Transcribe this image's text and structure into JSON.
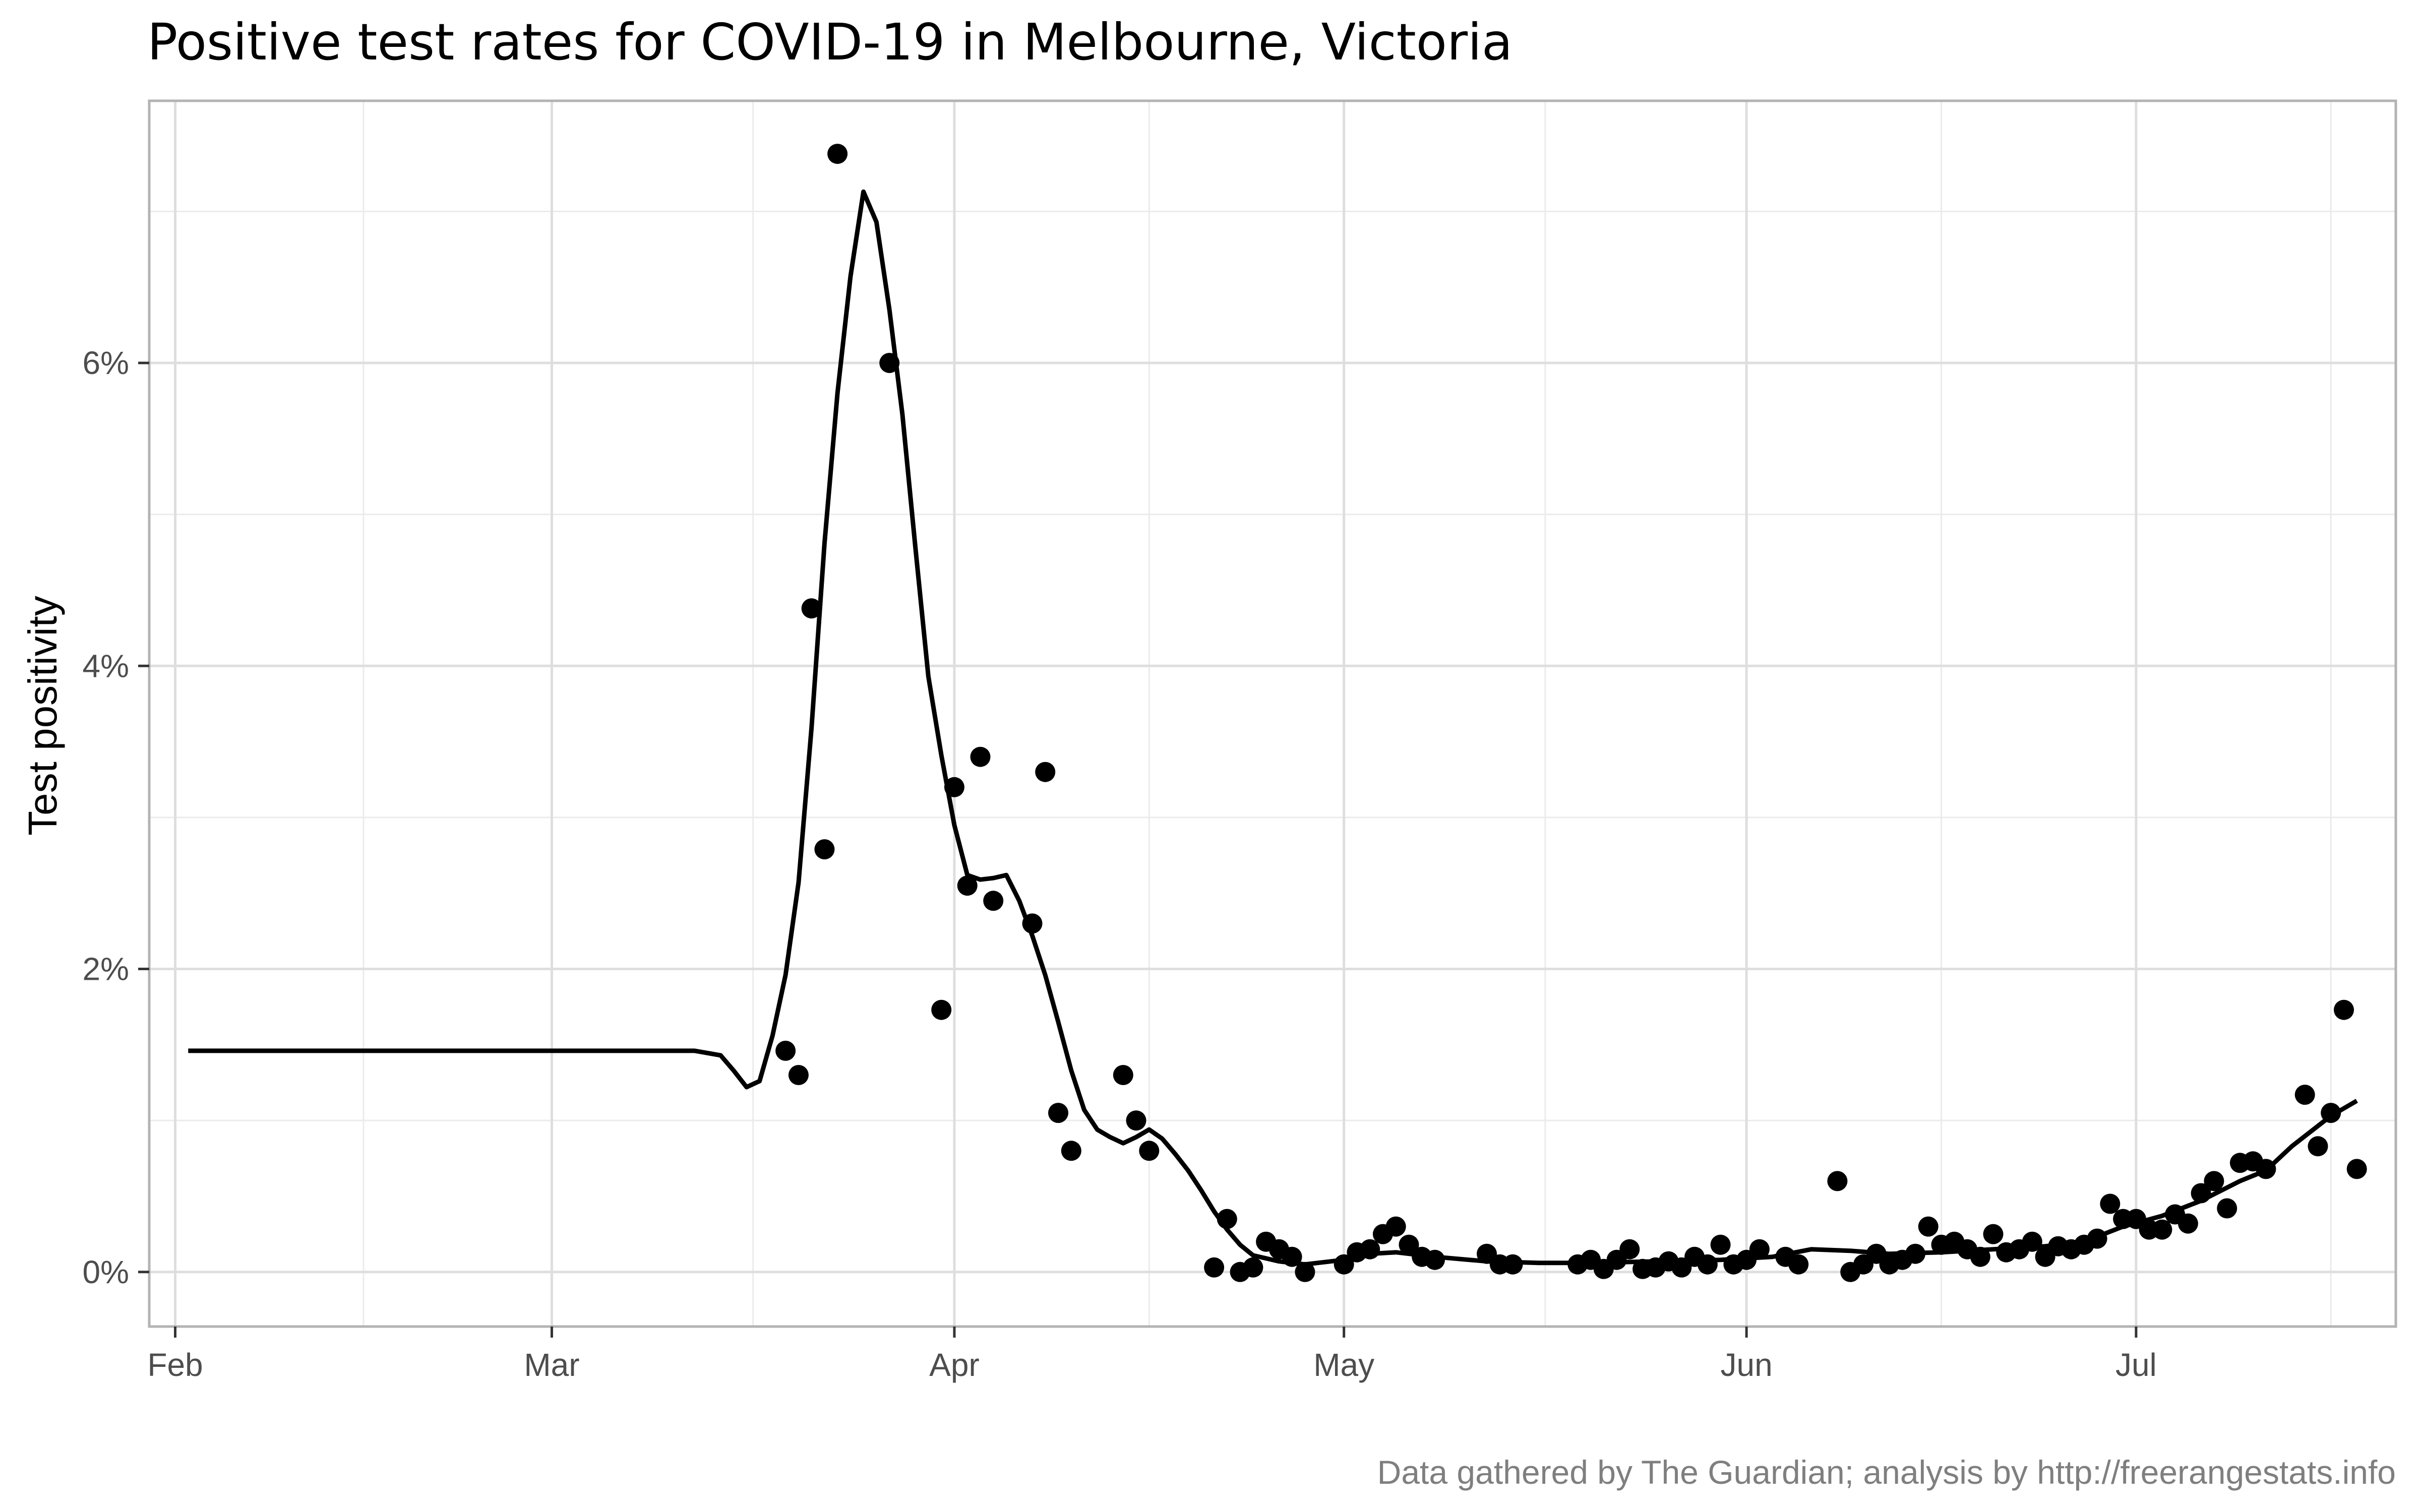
{
  "chart_data": {
    "type": "scatter",
    "title": "Positive test rates for COVID-19 in Melbourne, Victoria",
    "xlabel": "",
    "ylabel": "Test positivity",
    "caption": "Data gathered by The Guardian; analysis by http://freerangestats.info",
    "x_axis": {
      "type": "date",
      "range": [
        "2020-01-30",
        "2020-07-21"
      ],
      "ticks": [
        {
          "date": "2020-02-01",
          "label": "Feb"
        },
        {
          "date": "2020-03-01",
          "label": "Mar"
        },
        {
          "date": "2020-04-01",
          "label": "Apr"
        },
        {
          "date": "2020-05-01",
          "label": "May"
        },
        {
          "date": "2020-06-01",
          "label": "Jun"
        },
        {
          "date": "2020-07-01",
          "label": "Jul"
        }
      ]
    },
    "y_axis": {
      "range": [
        -0.0036,
        0.0773
      ],
      "ticks": [
        {
          "value": 0.0,
          "label": "0%"
        },
        {
          "value": 0.02,
          "label": "2%"
        },
        {
          "value": 0.04,
          "label": "4%"
        },
        {
          "value": 0.06,
          "label": "6%"
        }
      ]
    },
    "grid": true,
    "series": [
      {
        "type": "points",
        "color": "#000000",
        "points": [
          [
            "2020-03-19",
            0.0146
          ],
          [
            "2020-03-20",
            0.013
          ],
          [
            "2020-03-21",
            0.0438
          ],
          [
            "2020-03-22",
            0.0279
          ],
          [
            "2020-03-23",
            0.0738
          ],
          [
            "2020-03-27",
            0.06
          ],
          [
            "2020-03-31",
            0.0173
          ],
          [
            "2020-04-01",
            0.032
          ],
          [
            "2020-04-02",
            0.0255
          ],
          [
            "2020-04-03",
            0.034
          ],
          [
            "2020-04-04",
            0.0245
          ],
          [
            "2020-04-07",
            0.023
          ],
          [
            "2020-04-08",
            0.033
          ],
          [
            "2020-04-09",
            0.0105
          ],
          [
            "2020-04-10",
            0.008
          ],
          [
            "2020-04-14",
            0.013
          ],
          [
            "2020-04-15",
            0.01
          ],
          [
            "2020-04-16",
            0.008
          ],
          [
            "2020-04-21",
            0.0003
          ],
          [
            "2020-04-22",
            0.0035
          ],
          [
            "2020-04-23",
            0.0
          ],
          [
            "2020-04-24",
            0.0003
          ],
          [
            "2020-04-25",
            0.002
          ],
          [
            "2020-04-26",
            0.0015
          ],
          [
            "2020-04-27",
            0.001
          ],
          [
            "2020-04-28",
            0.0
          ],
          [
            "2020-05-30",
            0.0018
          ],
          [
            "2020-05-01",
            0.0005
          ],
          [
            "2020-05-02",
            0.0013
          ],
          [
            "2020-05-03",
            0.0015
          ],
          [
            "2020-05-04",
            0.0025
          ],
          [
            "2020-05-05",
            0.003
          ],
          [
            "2020-05-06",
            0.0018
          ],
          [
            "2020-05-07",
            0.001
          ],
          [
            "2020-05-08",
            0.0008
          ],
          [
            "2020-05-12",
            0.0012
          ],
          [
            "2020-05-13",
            0.0005
          ],
          [
            "2020-05-14",
            0.0005
          ],
          [
            "2020-05-19",
            0.0005
          ],
          [
            "2020-05-20",
            0.0008
          ],
          [
            "2020-05-21",
            0.0002
          ],
          [
            "2020-05-22",
            0.0008
          ],
          [
            "2020-05-23",
            0.0015
          ],
          [
            "2020-05-24",
            0.0002
          ],
          [
            "2020-05-25",
            0.0003
          ],
          [
            "2020-05-26",
            0.0007
          ],
          [
            "2020-05-27",
            0.0003
          ],
          [
            "2020-05-28",
            0.001
          ],
          [
            "2020-05-29",
            0.0005
          ],
          [
            "2020-05-31",
            0.0005
          ],
          [
            "2020-06-01",
            0.0008
          ],
          [
            "2020-06-02",
            0.0015
          ],
          [
            "2020-06-04",
            0.001
          ],
          [
            "2020-06-05",
            0.0005
          ],
          [
            "2020-06-08",
            0.006
          ],
          [
            "2020-06-09",
            0.0
          ],
          [
            "2020-06-10",
            0.0005
          ],
          [
            "2020-06-11",
            0.0012
          ],
          [
            "2020-06-12",
            0.0005
          ],
          [
            "2020-06-13",
            0.0008
          ],
          [
            "2020-06-14",
            0.0012
          ],
          [
            "2020-06-15",
            0.003
          ],
          [
            "2020-06-16",
            0.0018
          ],
          [
            "2020-06-17",
            0.002
          ],
          [
            "2020-06-18",
            0.0015
          ],
          [
            "2020-06-19",
            0.001
          ],
          [
            "2020-06-20",
            0.0025
          ],
          [
            "2020-06-21",
            0.0013
          ],
          [
            "2020-06-22",
            0.0015
          ],
          [
            "2020-06-23",
            0.002
          ],
          [
            "2020-06-24",
            0.001
          ],
          [
            "2020-06-25",
            0.0017
          ],
          [
            "2020-06-26",
            0.0015
          ],
          [
            "2020-06-27",
            0.0018
          ],
          [
            "2020-06-28",
            0.0022
          ],
          [
            "2020-06-29",
            0.0045
          ],
          [
            "2020-06-30",
            0.0035
          ],
          [
            "2020-07-01",
            0.0035
          ],
          [
            "2020-07-02",
            0.0028
          ],
          [
            "2020-07-03",
            0.0028
          ],
          [
            "2020-07-04",
            0.0038
          ],
          [
            "2020-07-05",
            0.0032
          ],
          [
            "2020-07-06",
            0.0052
          ],
          [
            "2020-07-07",
            0.006
          ],
          [
            "2020-07-08",
            0.0042
          ],
          [
            "2020-07-09",
            0.0072
          ],
          [
            "2020-07-10",
            0.0073
          ],
          [
            "2020-07-11",
            0.0068
          ],
          [
            "2020-07-14",
            0.0117
          ],
          [
            "2020-07-15",
            0.0083
          ],
          [
            "2020-07-16",
            0.0105
          ],
          [
            "2020-07-17",
            0.0173
          ],
          [
            "2020-07-18",
            0.0068
          ]
        ]
      },
      {
        "type": "line",
        "color": "#000000",
        "points": [
          [
            "2020-02-02",
            0.0146
          ],
          [
            "2020-03-12",
            0.0146
          ],
          [
            "2020-03-14",
            0.0143
          ],
          [
            "2020-03-15",
            0.0133
          ],
          [
            "2020-03-16",
            0.0122
          ],
          [
            "2020-03-17",
            0.0126
          ],
          [
            "2020-03-18",
            0.0156
          ],
          [
            "2020-03-19",
            0.0196
          ],
          [
            "2020-03-20",
            0.0257
          ],
          [
            "2020-03-21",
            0.0359
          ],
          [
            "2020-03-22",
            0.0481
          ],
          [
            "2020-03-23",
            0.058
          ],
          [
            "2020-03-24",
            0.0657
          ],
          [
            "2020-03-25",
            0.0713
          ],
          [
            "2020-03-26",
            0.0693
          ],
          [
            "2020-03-27",
            0.0635
          ],
          [
            "2020-03-28",
            0.0566
          ],
          [
            "2020-03-29",
            0.0478
          ],
          [
            "2020-03-30",
            0.0393
          ],
          [
            "2020-03-31",
            0.0341
          ],
          [
            "2020-04-01",
            0.0295
          ],
          [
            "2020-04-02",
            0.0262
          ],
          [
            "2020-04-03",
            0.0259
          ],
          [
            "2020-04-04",
            0.026
          ],
          [
            "2020-04-05",
            0.0262
          ],
          [
            "2020-04-06",
            0.0245
          ],
          [
            "2020-04-07",
            0.0222
          ],
          [
            "2020-04-08",
            0.0196
          ],
          [
            "2020-04-09",
            0.0165
          ],
          [
            "2020-04-10",
            0.0133
          ],
          [
            "2020-04-11",
            0.0107
          ],
          [
            "2020-04-12",
            0.0094
          ],
          [
            "2020-04-13",
            0.0089
          ],
          [
            "2020-04-14",
            0.0085
          ],
          [
            "2020-04-15",
            0.0089
          ],
          [
            "2020-04-16",
            0.0094
          ],
          [
            "2020-04-17",
            0.0088
          ],
          [
            "2020-04-18",
            0.0078
          ],
          [
            "2020-04-19",
            0.0067
          ],
          [
            "2020-04-20",
            0.0054
          ],
          [
            "2020-04-21",
            0.004
          ],
          [
            "2020-04-22",
            0.0028
          ],
          [
            "2020-04-23",
            0.0018
          ],
          [
            "2020-04-24",
            0.0011
          ],
          [
            "2020-04-26",
            0.0007
          ],
          [
            "2020-04-28",
            0.0005
          ],
          [
            "2020-05-01",
            0.0008
          ],
          [
            "2020-05-03",
            0.0012
          ],
          [
            "2020-05-05",
            0.0013
          ],
          [
            "2020-05-08",
            0.001
          ],
          [
            "2020-05-12",
            0.0007
          ],
          [
            "2020-05-16",
            0.0006
          ],
          [
            "2020-05-20",
            0.0006
          ],
          [
            "2020-05-25",
            0.0007
          ],
          [
            "2020-05-30",
            0.0008
          ],
          [
            "2020-06-03",
            0.001
          ],
          [
            "2020-06-06",
            0.0015
          ],
          [
            "2020-06-09",
            0.0014
          ],
          [
            "2020-06-12",
            0.0012
          ],
          [
            "2020-06-16",
            0.0013
          ],
          [
            "2020-06-20",
            0.0015
          ],
          [
            "2020-06-24",
            0.0017
          ],
          [
            "2020-06-27",
            0.002
          ],
          [
            "2020-06-30",
            0.003
          ],
          [
            "2020-07-03",
            0.0037
          ],
          [
            "2020-07-06",
            0.0047
          ],
          [
            "2020-07-09",
            0.006
          ],
          [
            "2020-07-11",
            0.0067
          ],
          [
            "2020-07-13",
            0.0083
          ],
          [
            "2020-07-16",
            0.0103
          ],
          [
            "2020-07-18",
            0.0113
          ]
        ]
      }
    ]
  }
}
